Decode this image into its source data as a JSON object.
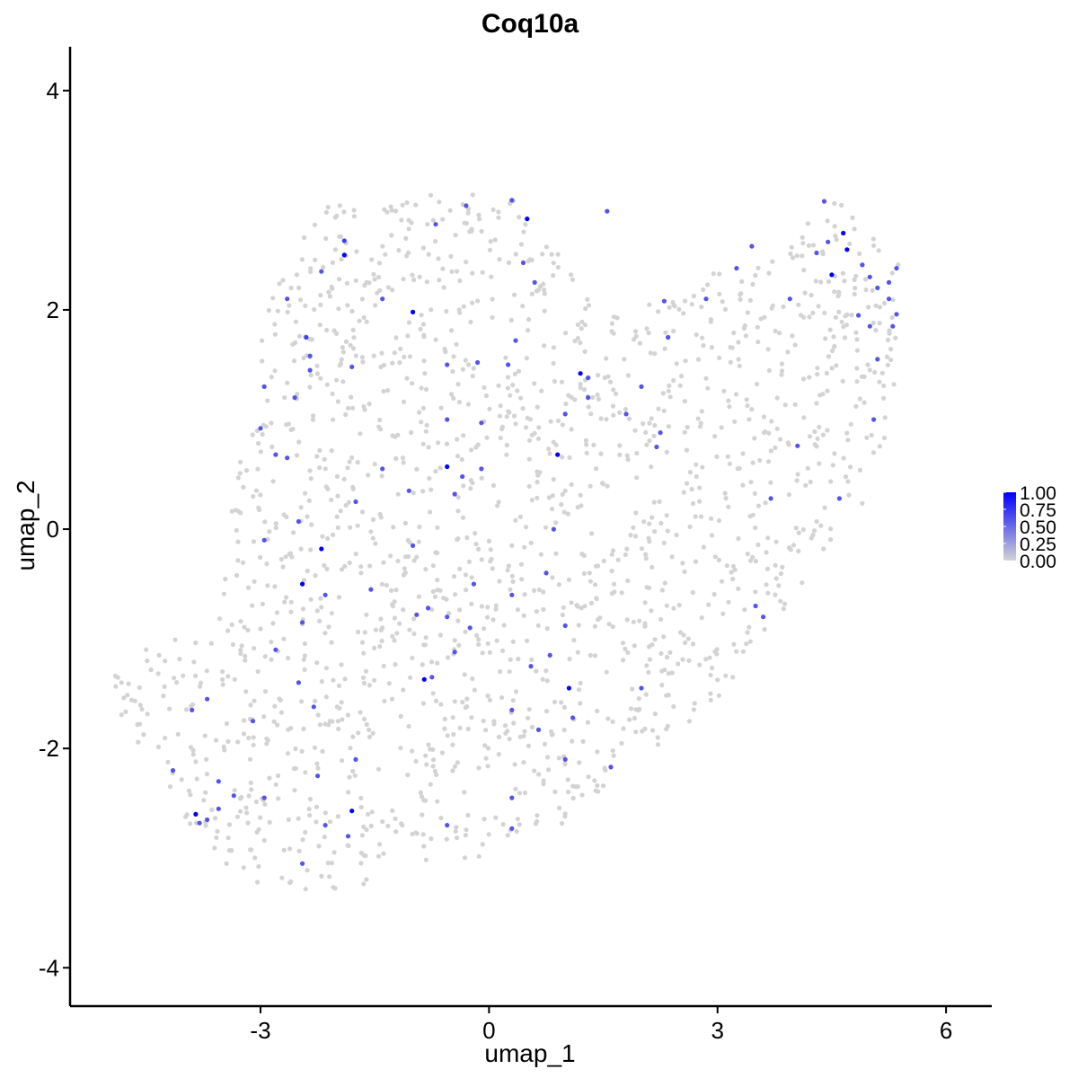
{
  "chart_data": {
    "type": "scatter",
    "title": "Coq10a",
    "xlabel": "umap_1",
    "ylabel": "umap_2",
    "xlim": [
      -5.5,
      6.6
    ],
    "ylim": [
      -4.35,
      4.4
    ],
    "x_ticks": [
      -3,
      0,
      3,
      6
    ],
    "y_ticks": [
      -4,
      -2,
      0,
      2,
      4
    ],
    "x_tick_labels": [
      "-3",
      "0",
      "3",
      "6"
    ],
    "y_tick_labels": [
      "-4",
      "-2",
      "0",
      "2",
      "4"
    ],
    "grid": false,
    "legend": {
      "placement": "right",
      "type": "colorbar",
      "labels": [
        "1.00",
        "0.75",
        "0.50",
        "0.25",
        "0.00"
      ],
      "values": [
        1.0,
        0.75,
        0.5,
        0.25,
        0.0
      ]
    },
    "colors": {
      "low": "#d3d3d3",
      "high": "#0000ff"
    },
    "expressing_points": [
      [
        -1.9,
        2.5,
        1.0
      ],
      [
        -1.0,
        1.98,
        1.0
      ],
      [
        0.5,
        2.83,
        1.0
      ],
      [
        1.2,
        1.42,
        1.0
      ],
      [
        0.9,
        0.68,
        1.0
      ],
      [
        -0.55,
        0.57,
        1.0
      ],
      [
        -2.2,
        -0.18,
        1.0
      ],
      [
        -2.45,
        -0.5,
        1.0
      ],
      [
        -0.85,
        -1.37,
        1.0
      ],
      [
        1.05,
        -1.45,
        1.0
      ],
      [
        -1.8,
        -2.57,
        1.0
      ],
      [
        -3.85,
        -2.6,
        1.0
      ],
      [
        4.65,
        2.7,
        1.0
      ],
      [
        4.7,
        2.55,
        1.0
      ],
      [
        4.5,
        2.32,
        1.0
      ],
      [
        -1.9,
        2.63,
        0.7
      ],
      [
        -2.2,
        2.35,
        0.6
      ],
      [
        -2.65,
        2.1,
        0.6
      ],
      [
        -2.4,
        1.75,
        0.7
      ],
      [
        -2.35,
        1.45,
        0.6
      ],
      [
        -2.55,
        1.2,
        0.6
      ],
      [
        -2.95,
        1.3,
        0.6
      ],
      [
        -3.0,
        0.92,
        0.6
      ],
      [
        -2.65,
        0.65,
        0.6
      ],
      [
        -2.5,
        0.07,
        0.6
      ],
      [
        -2.95,
        -0.1,
        0.6
      ],
      [
        -2.15,
        -0.6,
        0.6
      ],
      [
        -2.45,
        -0.85,
        0.6
      ],
      [
        -2.8,
        -1.1,
        0.6
      ],
      [
        -1.8,
        1.48,
        0.6
      ],
      [
        -1.4,
        2.1,
        0.6
      ],
      [
        -0.7,
        2.78,
        0.6
      ],
      [
        -0.3,
        2.95,
        0.6
      ],
      [
        0.3,
        3.0,
        0.6
      ],
      [
        1.55,
        2.9,
        0.6
      ],
      [
        0.45,
        2.43,
        0.6
      ],
      [
        0.6,
        2.25,
        0.6
      ],
      [
        0.35,
        1.72,
        0.6
      ],
      [
        0.25,
        1.5,
        0.6
      ],
      [
        -0.15,
        1.52,
        0.6
      ],
      [
        -0.55,
        1.5,
        0.6
      ],
      [
        -0.55,
        1.0,
        0.6
      ],
      [
        -0.1,
        0.97,
        0.6
      ],
      [
        -0.35,
        0.48,
        0.6
      ],
      [
        -0.1,
        0.55,
        0.6
      ],
      [
        -0.45,
        0.32,
        0.6
      ],
      [
        -1.05,
        0.35,
        0.6
      ],
      [
        -1.4,
        0.55,
        0.6
      ],
      [
        -1.75,
        0.25,
        0.6
      ],
      [
        -1.0,
        -0.15,
        0.6
      ],
      [
        -1.55,
        -0.55,
        0.6
      ],
      [
        -0.95,
        -0.78,
        0.6
      ],
      [
        -0.55,
        -0.8,
        0.6
      ],
      [
        -0.25,
        -0.9,
        0.6
      ],
      [
        -0.2,
        -0.5,
        0.6
      ],
      [
        0.3,
        -0.6,
        0.6
      ],
      [
        0.75,
        -0.4,
        0.6
      ],
      [
        0.85,
        0.0,
        0.6
      ],
      [
        1.0,
        -0.88,
        0.6
      ],
      [
        0.8,
        -1.15,
        0.6
      ],
      [
        0.55,
        -1.25,
        0.6
      ],
      [
        0.65,
        -1.83,
        0.6
      ],
      [
        1.1,
        -1.72,
        0.6
      ],
      [
        1.0,
        -2.1,
        0.6
      ],
      [
        0.3,
        -1.65,
        0.6
      ],
      [
        -0.45,
        -1.12,
        0.6
      ],
      [
        -0.75,
        -1.35,
        0.6
      ],
      [
        -0.55,
        -2.7,
        0.6
      ],
      [
        0.3,
        -2.73,
        0.6
      ],
      [
        0.3,
        -2.45,
        0.6
      ],
      [
        1.6,
        -2.17,
        0.6
      ],
      [
        2.0,
        -1.45,
        0.6
      ],
      [
        2.3,
        2.08,
        0.6
      ],
      [
        2.85,
        2.1,
        0.6
      ],
      [
        3.25,
        2.38,
        0.6
      ],
      [
        3.45,
        2.58,
        0.6
      ],
      [
        3.95,
        2.1,
        0.6
      ],
      [
        4.3,
        2.52,
        0.6
      ],
      [
        4.45,
        2.62,
        0.6
      ],
      [
        4.4,
        2.99,
        0.6
      ],
      [
        4.9,
        2.41,
        0.6
      ],
      [
        5.0,
        2.3,
        0.6
      ],
      [
        5.1,
        2.2,
        0.6
      ],
      [
        5.25,
        2.25,
        0.6
      ],
      [
        5.35,
        2.38,
        0.6
      ],
      [
        5.25,
        2.1,
        0.6
      ],
      [
        5.35,
        1.96,
        0.6
      ],
      [
        5.3,
        1.85,
        0.6
      ],
      [
        5.0,
        1.85,
        0.6
      ],
      [
        4.85,
        1.95,
        0.6
      ],
      [
        5.1,
        1.55,
        0.6
      ],
      [
        5.05,
        1.0,
        0.6
      ],
      [
        4.6,
        0.28,
        0.6
      ],
      [
        4.05,
        0.76,
        0.6
      ],
      [
        3.7,
        0.28,
        0.6
      ],
      [
        2.25,
        0.88,
        0.6
      ],
      [
        2.2,
        0.75,
        0.6
      ],
      [
        2.35,
        1.75,
        0.6
      ],
      [
        2.0,
        1.3,
        0.6
      ],
      [
        1.3,
        1.38,
        0.6
      ],
      [
        1.3,
        1.2,
        0.6
      ],
      [
        1.0,
        1.05,
        0.6
      ],
      [
        1.8,
        1.05,
        0.6
      ],
      [
        3.5,
        -0.7,
        0.6
      ],
      [
        3.6,
        -0.8,
        0.6
      ],
      [
        -3.1,
        -1.75,
        0.6
      ],
      [
        -2.95,
        -2.45,
        0.6
      ],
      [
        -3.35,
        -2.43,
        0.6
      ],
      [
        -3.55,
        -2.55,
        0.6
      ],
      [
        -3.55,
        -2.3,
        0.6
      ],
      [
        -3.7,
        -2.65,
        0.6
      ],
      [
        -4.15,
        -2.2,
        0.6
      ],
      [
        -3.8,
        -2.68,
        0.6
      ],
      [
        -3.9,
        -1.65,
        0.6
      ],
      [
        -3.7,
        -1.55,
        0.6
      ],
      [
        -2.25,
        -2.25,
        0.6
      ],
      [
        -2.15,
        -2.7,
        0.6
      ],
      [
        -2.45,
        -3.05,
        0.6
      ],
      [
        -1.75,
        -2.1,
        0.6
      ],
      [
        -2.3,
        -1.62,
        0.6
      ],
      [
        -2.5,
        -1.4,
        0.6
      ],
      [
        -1.85,
        -2.8,
        0.6
      ],
      [
        -2.35,
        1.58,
        0.6
      ],
      [
        -2.8,
        0.68,
        0.6
      ],
      [
        -0.8,
        -0.72,
        0.6
      ]
    ],
    "note": ""
  }
}
